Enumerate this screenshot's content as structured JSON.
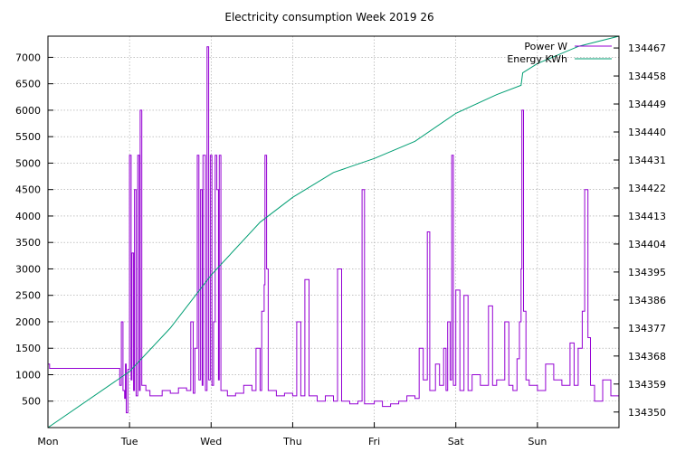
{
  "chart_data": {
    "type": "line",
    "title": "Electricity consumption Week 2019 26",
    "xlabel": "",
    "ylabel": "",
    "y2label": "",
    "x_categories": [
      "Mon",
      "Tue",
      "Wed",
      "Thu",
      "Fri",
      "Sat",
      "Sun"
    ],
    "xlim": [
      0,
      7
    ],
    "ylim": [
      0,
      7400
    ],
    "y_ticks": [
      500,
      1000,
      1500,
      2000,
      2500,
      3000,
      3500,
      4000,
      4500,
      5000,
      5500,
      6000,
      6500,
      7000
    ],
    "y2lim": [
      134345.0,
      134470.8
    ],
    "y2_ticks": [
      134350,
      134359,
      134368,
      134377,
      134386,
      134395,
      134404,
      134413,
      134422,
      134431,
      134440,
      134449,
      134458,
      134467
    ],
    "grid": true,
    "legend_position": "top-right",
    "series": [
      {
        "name": "Power W",
        "axis": "left",
        "color": "#9400d3",
        "points": [
          [
            0.0,
            1200
          ],
          [
            0.02,
            1120
          ],
          [
            0.4,
            1120
          ],
          [
            0.85,
            1120
          ],
          [
            0.88,
            800
          ],
          [
            0.9,
            2000
          ],
          [
            0.92,
            700
          ],
          [
            0.94,
            550
          ],
          [
            0.95,
            1200
          ],
          [
            0.96,
            280
          ],
          [
            0.98,
            1100
          ],
          [
            1.0,
            5150
          ],
          [
            1.02,
            900
          ],
          [
            1.03,
            3300
          ],
          [
            1.05,
            700
          ],
          [
            1.06,
            4500
          ],
          [
            1.08,
            600
          ],
          [
            1.1,
            5150
          ],
          [
            1.12,
            700
          ],
          [
            1.13,
            6000
          ],
          [
            1.15,
            800
          ],
          [
            1.2,
            700
          ],
          [
            1.25,
            600
          ],
          [
            1.4,
            700
          ],
          [
            1.5,
            650
          ],
          [
            1.6,
            750
          ],
          [
            1.7,
            700
          ],
          [
            1.75,
            2000
          ],
          [
            1.78,
            650
          ],
          [
            1.8,
            1500
          ],
          [
            1.83,
            5150
          ],
          [
            1.85,
            900
          ],
          [
            1.87,
            4500
          ],
          [
            1.89,
            800
          ],
          [
            1.9,
            5150
          ],
          [
            1.93,
            700
          ],
          [
            1.95,
            7200
          ],
          [
            1.97,
            900
          ],
          [
            1.99,
            5150
          ],
          [
            2.01,
            800
          ],
          [
            2.03,
            2000
          ],
          [
            2.05,
            5150
          ],
          [
            2.07,
            4500
          ],
          [
            2.09,
            900
          ],
          [
            2.1,
            5150
          ],
          [
            2.12,
            700
          ],
          [
            2.2,
            600
          ],
          [
            2.3,
            650
          ],
          [
            2.4,
            800
          ],
          [
            2.5,
            700
          ],
          [
            2.55,
            1500
          ],
          [
            2.6,
            700
          ],
          [
            2.62,
            2200
          ],
          [
            2.65,
            2700
          ],
          [
            2.66,
            5150
          ],
          [
            2.68,
            3000
          ],
          [
            2.7,
            700
          ],
          [
            2.8,
            600
          ],
          [
            2.9,
            650
          ],
          [
            3.0,
            600
          ],
          [
            3.05,
            2000
          ],
          [
            3.1,
            600
          ],
          [
            3.15,
            2800
          ],
          [
            3.2,
            600
          ],
          [
            3.3,
            500
          ],
          [
            3.4,
            600
          ],
          [
            3.5,
            500
          ],
          [
            3.55,
            3000
          ],
          [
            3.6,
            500
          ],
          [
            3.7,
            450
          ],
          [
            3.8,
            500
          ],
          [
            3.85,
            4500
          ],
          [
            3.88,
            450
          ],
          [
            4.0,
            500
          ],
          [
            4.1,
            400
          ],
          [
            4.2,
            450
          ],
          [
            4.3,
            500
          ],
          [
            4.4,
            600
          ],
          [
            4.5,
            550
          ],
          [
            4.55,
            1500
          ],
          [
            4.6,
            900
          ],
          [
            4.65,
            3700
          ],
          [
            4.68,
            700
          ],
          [
            4.75,
            1200
          ],
          [
            4.8,
            800
          ],
          [
            4.85,
            1500
          ],
          [
            4.88,
            700
          ],
          [
            4.9,
            2000
          ],
          [
            4.93,
            900
          ],
          [
            4.95,
            5150
          ],
          [
            4.97,
            800
          ],
          [
            5.0,
            2600
          ],
          [
            5.05,
            700
          ],
          [
            5.1,
            2500
          ],
          [
            5.15,
            700
          ],
          [
            5.2,
            1000
          ],
          [
            5.3,
            800
          ],
          [
            5.4,
            2300
          ],
          [
            5.45,
            800
          ],
          [
            5.5,
            900
          ],
          [
            5.6,
            2000
          ],
          [
            5.65,
            800
          ],
          [
            5.7,
            700
          ],
          [
            5.75,
            1300
          ],
          [
            5.78,
            2000
          ],
          [
            5.8,
            3000
          ],
          [
            5.81,
            6000
          ],
          [
            5.83,
            2200
          ],
          [
            5.86,
            900
          ],
          [
            5.9,
            800
          ],
          [
            6.0,
            700
          ],
          [
            6.1,
            1200
          ],
          [
            6.2,
            900
          ],
          [
            6.3,
            800
          ],
          [
            6.4,
            1600
          ],
          [
            6.45,
            800
          ],
          [
            6.5,
            1500
          ],
          [
            6.55,
            2200
          ],
          [
            6.58,
            4500
          ],
          [
            6.62,
            1700
          ],
          [
            6.65,
            800
          ],
          [
            6.7,
            500
          ],
          [
            6.8,
            900
          ],
          [
            6.9,
            600
          ],
          [
            7.0,
            1100
          ]
        ]
      },
      {
        "name": "Energy KWh",
        "axis": "right",
        "color": "#009e73",
        "points": [
          [
            0.0,
            134345.0
          ],
          [
            1.0,
            134363.0
          ],
          [
            1.5,
            134377.0
          ],
          [
            2.0,
            134394.0
          ],
          [
            2.6,
            134411.0
          ],
          [
            3.0,
            134419.0
          ],
          [
            3.5,
            134427.0
          ],
          [
            4.0,
            134431.5
          ],
          [
            4.5,
            134437.0
          ],
          [
            5.0,
            134446.0
          ],
          [
            5.5,
            134452.0
          ],
          [
            5.8,
            134455.0
          ],
          [
            5.82,
            134459.0
          ],
          [
            6.0,
            134462.0
          ],
          [
            6.5,
            134467.5
          ],
          [
            7.0,
            134470.8
          ]
        ]
      }
    ]
  }
}
